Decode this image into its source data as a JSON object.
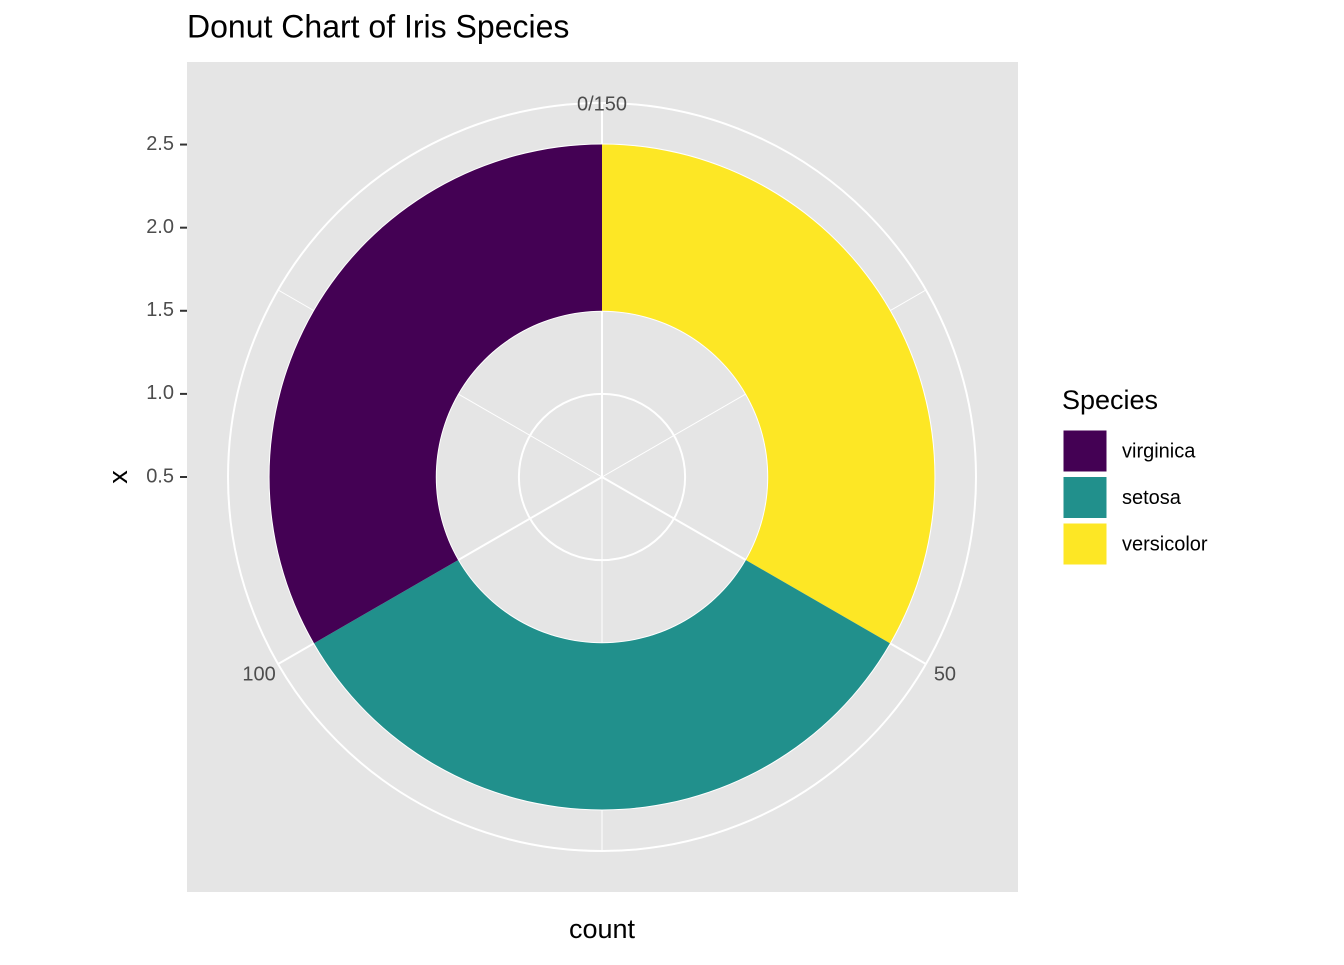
{
  "chart_data": {
    "type": "donut",
    "title": "Donut Chart of Iris Species",
    "x_label": "count",
    "y_label": "x",
    "x": 2,
    "series": [
      {
        "name": "virginica",
        "color": "#440154",
        "values": [
          50
        ]
      },
      {
        "name": "setosa",
        "color": "#21908C",
        "values": [
          50
        ]
      },
      {
        "name": "versicolor",
        "color": "#FDE725",
        "values": [
          50
        ]
      }
    ],
    "legend_title": "Species",
    "xlim": [
      0,
      150
    ],
    "xticks": [
      {
        "value": 0,
        "label": "0/150"
      },
      50,
      100
    ],
    "ylim": [
      0.5,
      2.75
    ],
    "yticks": [
      0.5,
      {
        "value": 1,
        "label": "1.0"
      },
      1.5,
      {
        "value": 2,
        "label": "2.0"
      },
      2.5
    ],
    "grid": true,
    "legend": "right"
  }
}
